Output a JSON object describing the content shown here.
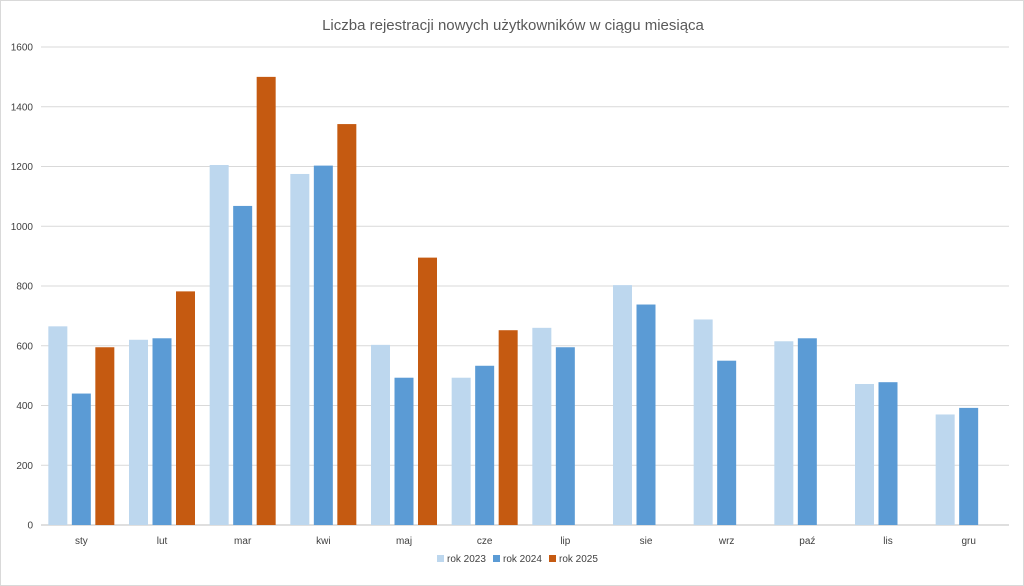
{
  "chart_data": {
    "type": "bar",
    "title": "Liczba rejestracji nowych użytkowników w ciągu miesiąca",
    "xlabel": "",
    "ylabel": "",
    "ylim": [
      0,
      1600
    ],
    "yticks": [
      0,
      200,
      400,
      600,
      800,
      1000,
      1200,
      1400,
      1600
    ],
    "grid": true,
    "legend_position": "bottom",
    "categories": [
      "sty",
      "lut",
      "mar",
      "kwi",
      "maj",
      "cze",
      "lip",
      "sie",
      "wrz",
      "paź",
      "lis",
      "gru"
    ],
    "series": [
      {
        "name": "rok 2023",
        "color": "#bdd7ee",
        "values": [
          665,
          620,
          1205,
          1175,
          603,
          493,
          660,
          803,
          688,
          615,
          472,
          370
        ]
      },
      {
        "name": "rok 2024",
        "color": "#5b9bd5",
        "values": [
          440,
          625,
          1068,
          1203,
          493,
          533,
          595,
          738,
          550,
          625,
          478,
          392
        ]
      },
      {
        "name": "rok 2025",
        "color": "#c55a11",
        "values": [
          595,
          782,
          1500,
          1342,
          895,
          652,
          null,
          null,
          null,
          null,
          null,
          null
        ]
      }
    ]
  }
}
